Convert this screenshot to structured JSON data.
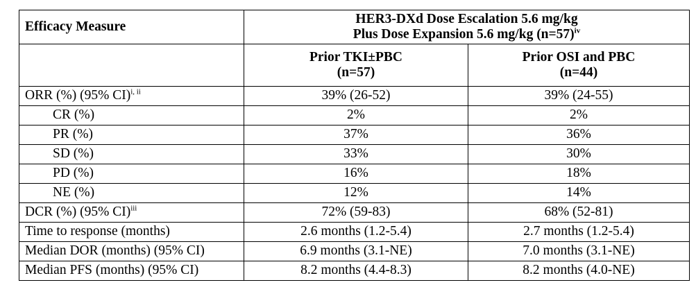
{
  "header": {
    "efficacy_measure": "Efficacy Measure",
    "group_line1": "HER3-DXd Dose Escalation 5.6 mg/kg",
    "group_line2": "Plus Dose Expansion 5.6 mg/kg (n=57)",
    "group_sup": "iv",
    "col1_line1": "Prior TKI±PBC",
    "col1_line2": "(n=57)",
    "col2_line1": "Prior OSI and PBC",
    "col2_line2": "(n=44)"
  },
  "rows": [
    {
      "measure": "ORR (%) (95% CI)",
      "sup": "i, ii",
      "indent": false,
      "v1": "39% (26-52)",
      "v2": "39% (24-55)"
    },
    {
      "measure": "CR (%)",
      "sup": "",
      "indent": true,
      "v1": "2%",
      "v2": "2%"
    },
    {
      "measure": "PR (%)",
      "sup": "",
      "indent": true,
      "v1": "37%",
      "v2": "36%"
    },
    {
      "measure": "SD (%)",
      "sup": "",
      "indent": true,
      "v1": "33%",
      "v2": "30%"
    },
    {
      "measure": "PD (%)",
      "sup": "",
      "indent": true,
      "v1": "16%",
      "v2": "18%"
    },
    {
      "measure": "NE (%)",
      "sup": "",
      "indent": true,
      "v1": "12%",
      "v2": "14%"
    },
    {
      "measure": "DCR (%) (95% CI)",
      "sup": "iii",
      "indent": false,
      "v1": "72% (59-83)",
      "v2": "68% (52-81)"
    },
    {
      "measure": "Time to response (months)",
      "sup": "",
      "indent": false,
      "v1": "2.6 months (1.2-5.4)",
      "v2": "2.7 months (1.2-5.4)"
    },
    {
      "measure": "Median DOR (months) (95% CI)",
      "sup": "",
      "indent": false,
      "v1": "6.9 months (3.1-NE)",
      "v2": "7.0 months (3.1-NE)"
    },
    {
      "measure": "Median PFS (months) (95% CI)",
      "sup": "",
      "indent": false,
      "v1": "8.2 months (4.4-8.3)",
      "v2": "8.2 months (4.0-NE)"
    }
  ]
}
